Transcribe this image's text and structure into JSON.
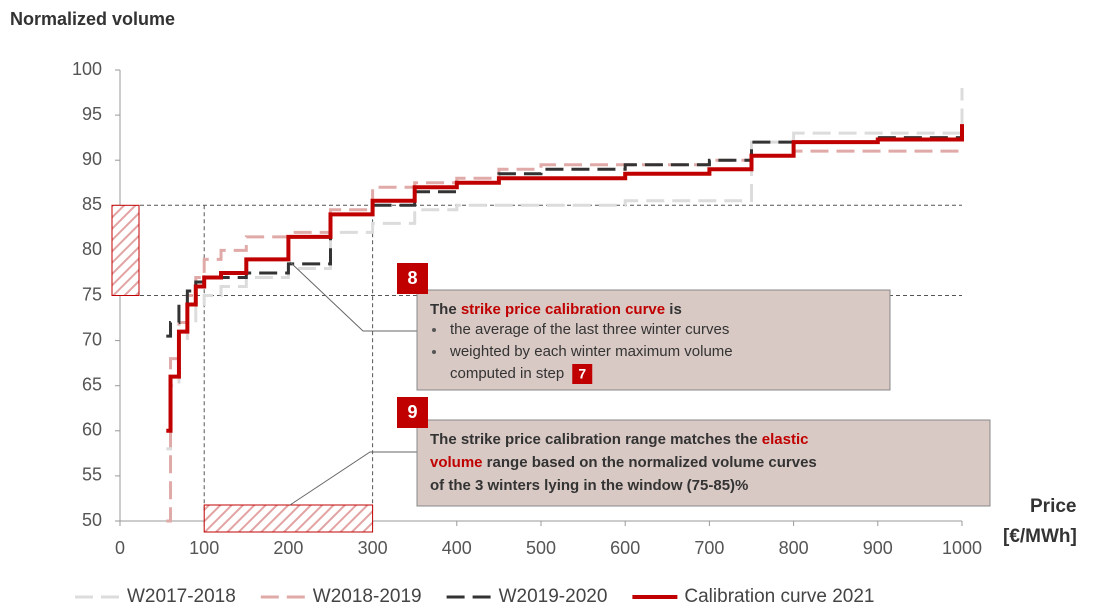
{
  "chart_data": {
    "type": "line",
    "step": true,
    "y_label": "Normalized volume",
    "x_label": [
      "Price",
      "[€/MWh]"
    ],
    "x": [
      55,
      60,
      70,
      80,
      90,
      100,
      120,
      150,
      200,
      250,
      300,
      350,
      400,
      450,
      500,
      600,
      700,
      750,
      800,
      900,
      1000
    ],
    "series": [
      {
        "name": "W2017-2018",
        "color": "#dcdcdc",
        "dashed": true,
        "width": 3,
        "values": [
          58,
          65,
          70,
          72,
          74,
          75,
          76,
          77,
          78,
          82,
          83,
          84.5,
          85,
          85,
          85,
          85.5,
          85.5,
          92,
          93,
          93,
          98
        ]
      },
      {
        "name": "W2018-2019",
        "color": "#e0aaa8",
        "dashed": true,
        "width": 3,
        "values": [
          50,
          68,
          72,
          75,
          77,
          79,
          80,
          81.5,
          82,
          84.5,
          87,
          87.5,
          88,
          89,
          89.5,
          89.5,
          90,
          90.5,
          91,
          91,
          91
        ]
      },
      {
        "name": "W2019-2020",
        "color": "#333333",
        "dashed": true,
        "width": 3,
        "values": [
          70.5,
          72,
          74,
          75.5,
          76.5,
          77,
          77,
          77.5,
          78.5,
          84,
          85,
          86.5,
          87.5,
          88.5,
          89,
          89.5,
          90,
          92,
          92,
          92.5,
          92.5
        ]
      },
      {
        "name": "Calibration curve 2021",
        "color": "#c00000",
        "dashed": false,
        "width": 4,
        "values": [
          60,
          66,
          71,
          74,
          76,
          77,
          77.5,
          79,
          81.5,
          84,
          85.5,
          87,
          87.5,
          88,
          88,
          88.5,
          89,
          90.5,
          92,
          92.3,
          94
        ]
      }
    ],
    "xlim": [
      0,
      1000
    ],
    "ylim": [
      50,
      100
    ],
    "xticks": [
      0,
      100,
      200,
      300,
      400,
      500,
      600,
      700,
      800,
      900,
      1000
    ],
    "yticks": [
      50,
      55,
      60,
      65,
      70,
      75,
      80,
      85,
      90,
      95,
      100
    ],
    "reference_y": [
      75,
      85
    ],
    "reference_x": [
      100,
      300
    ],
    "legend": "bottom",
    "annotations": [
      {
        "badge": "8",
        "lines": [
          [
            {
              "text": "The ",
              "highlight": false
            },
            {
              "text": "strike price calibration curve",
              "highlight": true
            },
            {
              "text": " is",
              "highlight": false
            }
          ]
        ],
        "bullets": [
          "the average of the last three winter curves",
          "weighted by each winter maximum volume"
        ],
        "bullet_continuation": "computed in step",
        "step_badge": "7"
      },
      {
        "badge": "9",
        "lines": [
          [
            {
              "text": "The strike price calibration range matches the ",
              "highlight": false
            },
            {
              "text": "elastic",
              "highlight": true
            }
          ],
          [
            {
              "text": "volume",
              "highlight": true
            },
            {
              "text": " range based on the normalized volume curves",
              "highlight": false
            }
          ],
          [
            {
              "text": "of the 3 winters lying in the window (75-85)%",
              "highlight": false
            }
          ]
        ]
      }
    ]
  }
}
